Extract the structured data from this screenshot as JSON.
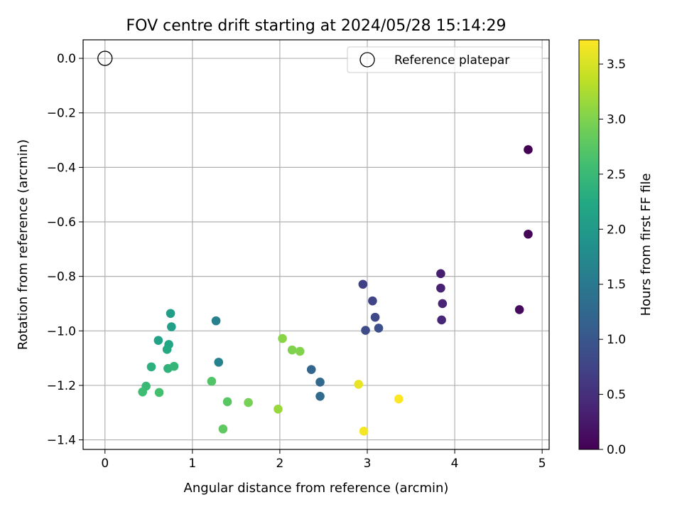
{
  "chart_data": {
    "type": "scatter",
    "title": "FOV centre drift starting at 2024/05/28 15:14:29",
    "xlabel": "Angular distance from reference (arcmin)",
    "ylabel": "Rotation from reference (arcmin)",
    "xlim": [
      -0.25,
      5.08
    ],
    "ylim": [
      -1.435,
      0.068
    ],
    "xticks": [
      0,
      1,
      2,
      3,
      4,
      5
    ],
    "xtick_labels": [
      "0",
      "1",
      "2",
      "3",
      "4",
      "5"
    ],
    "yticks": [
      0.0,
      -0.2,
      -0.4,
      -0.6,
      -0.8,
      -1.0,
      -1.2,
      -1.4
    ],
    "ytick_labels": [
      "0.0",
      "−0.2",
      "−0.4",
      "−0.6",
      "−0.8",
      "−1.0",
      "−1.2",
      "−1.4"
    ],
    "grid": true,
    "legend": {
      "placement": "top-right",
      "entries": [
        {
          "label": "Reference platepar",
          "marker": "open-circle"
        }
      ]
    },
    "reference_point": {
      "x": 0,
      "y": 0
    },
    "colorbar": {
      "label": "Hours from first FF file",
      "colormap": "viridis",
      "min": 0.0,
      "max": 3.72,
      "ticks": [
        0.0,
        0.5,
        1.0,
        1.5,
        2.0,
        2.5,
        3.0,
        3.5
      ],
      "tick_labels": [
        "0.0",
        "0.5",
        "1.0",
        "1.5",
        "2.0",
        "2.5",
        "3.0",
        "3.5"
      ]
    },
    "points": [
      {
        "x": 4.84,
        "y": -0.335,
        "c": 0.0
      },
      {
        "x": 4.84,
        "y": -0.645,
        "c": 0.05
      },
      {
        "x": 4.74,
        "y": -0.922,
        "c": 0.1
      },
      {
        "x": 3.84,
        "y": -0.79,
        "c": 0.3
      },
      {
        "x": 3.84,
        "y": -0.843,
        "c": 0.35
      },
      {
        "x": 3.86,
        "y": -0.9,
        "c": 0.38
      },
      {
        "x": 3.85,
        "y": -0.96,
        "c": 0.42
      },
      {
        "x": 2.95,
        "y": -0.829,
        "c": 0.7
      },
      {
        "x": 3.06,
        "y": -0.89,
        "c": 0.75
      },
      {
        "x": 3.09,
        "y": -0.95,
        "c": 0.8
      },
      {
        "x": 2.98,
        "y": -0.998,
        "c": 0.85
      },
      {
        "x": 3.13,
        "y": -0.99,
        "c": 0.9
      },
      {
        "x": 2.36,
        "y": -1.142,
        "c": 1.2
      },
      {
        "x": 2.46,
        "y": -1.188,
        "c": 1.25
      },
      {
        "x": 2.46,
        "y": -1.24,
        "c": 1.28
      },
      {
        "x": 1.27,
        "y": -0.963,
        "c": 1.6
      },
      {
        "x": 1.3,
        "y": -1.115,
        "c": 1.65
      },
      {
        "x": 0.75,
        "y": -0.936,
        "c": 2.05
      },
      {
        "x": 0.76,
        "y": -0.985,
        "c": 2.08
      },
      {
        "x": 0.61,
        "y": -1.035,
        "c": 2.15
      },
      {
        "x": 0.73,
        "y": -1.05,
        "c": 2.2
      },
      {
        "x": 0.71,
        "y": -1.068,
        "c": 2.25
      },
      {
        "x": 0.53,
        "y": -1.132,
        "c": 2.35
      },
      {
        "x": 0.72,
        "y": -1.138,
        "c": 2.4
      },
      {
        "x": 0.79,
        "y": -1.13,
        "c": 2.45
      },
      {
        "x": 0.47,
        "y": -1.203,
        "c": 2.5
      },
      {
        "x": 0.43,
        "y": -1.224,
        "c": 2.55
      },
      {
        "x": 0.62,
        "y": -1.226,
        "c": 2.6
      },
      {
        "x": 1.22,
        "y": -1.185,
        "c": 2.7
      },
      {
        "x": 1.4,
        "y": -1.26,
        "c": 2.75
      },
      {
        "x": 1.35,
        "y": -1.36,
        "c": 2.8
      },
      {
        "x": 1.64,
        "y": -1.263,
        "c": 2.95
      },
      {
        "x": 2.03,
        "y": -1.028,
        "c": 3.05
      },
      {
        "x": 2.14,
        "y": -1.07,
        "c": 3.0
      },
      {
        "x": 2.23,
        "y": -1.075,
        "c": 3.02
      },
      {
        "x": 1.98,
        "y": -1.287,
        "c": 3.15
      },
      {
        "x": 2.9,
        "y": -1.196,
        "c": 3.6
      },
      {
        "x": 2.96,
        "y": -1.368,
        "c": 3.66
      },
      {
        "x": 3.36,
        "y": -1.25,
        "c": 3.72
      }
    ]
  }
}
